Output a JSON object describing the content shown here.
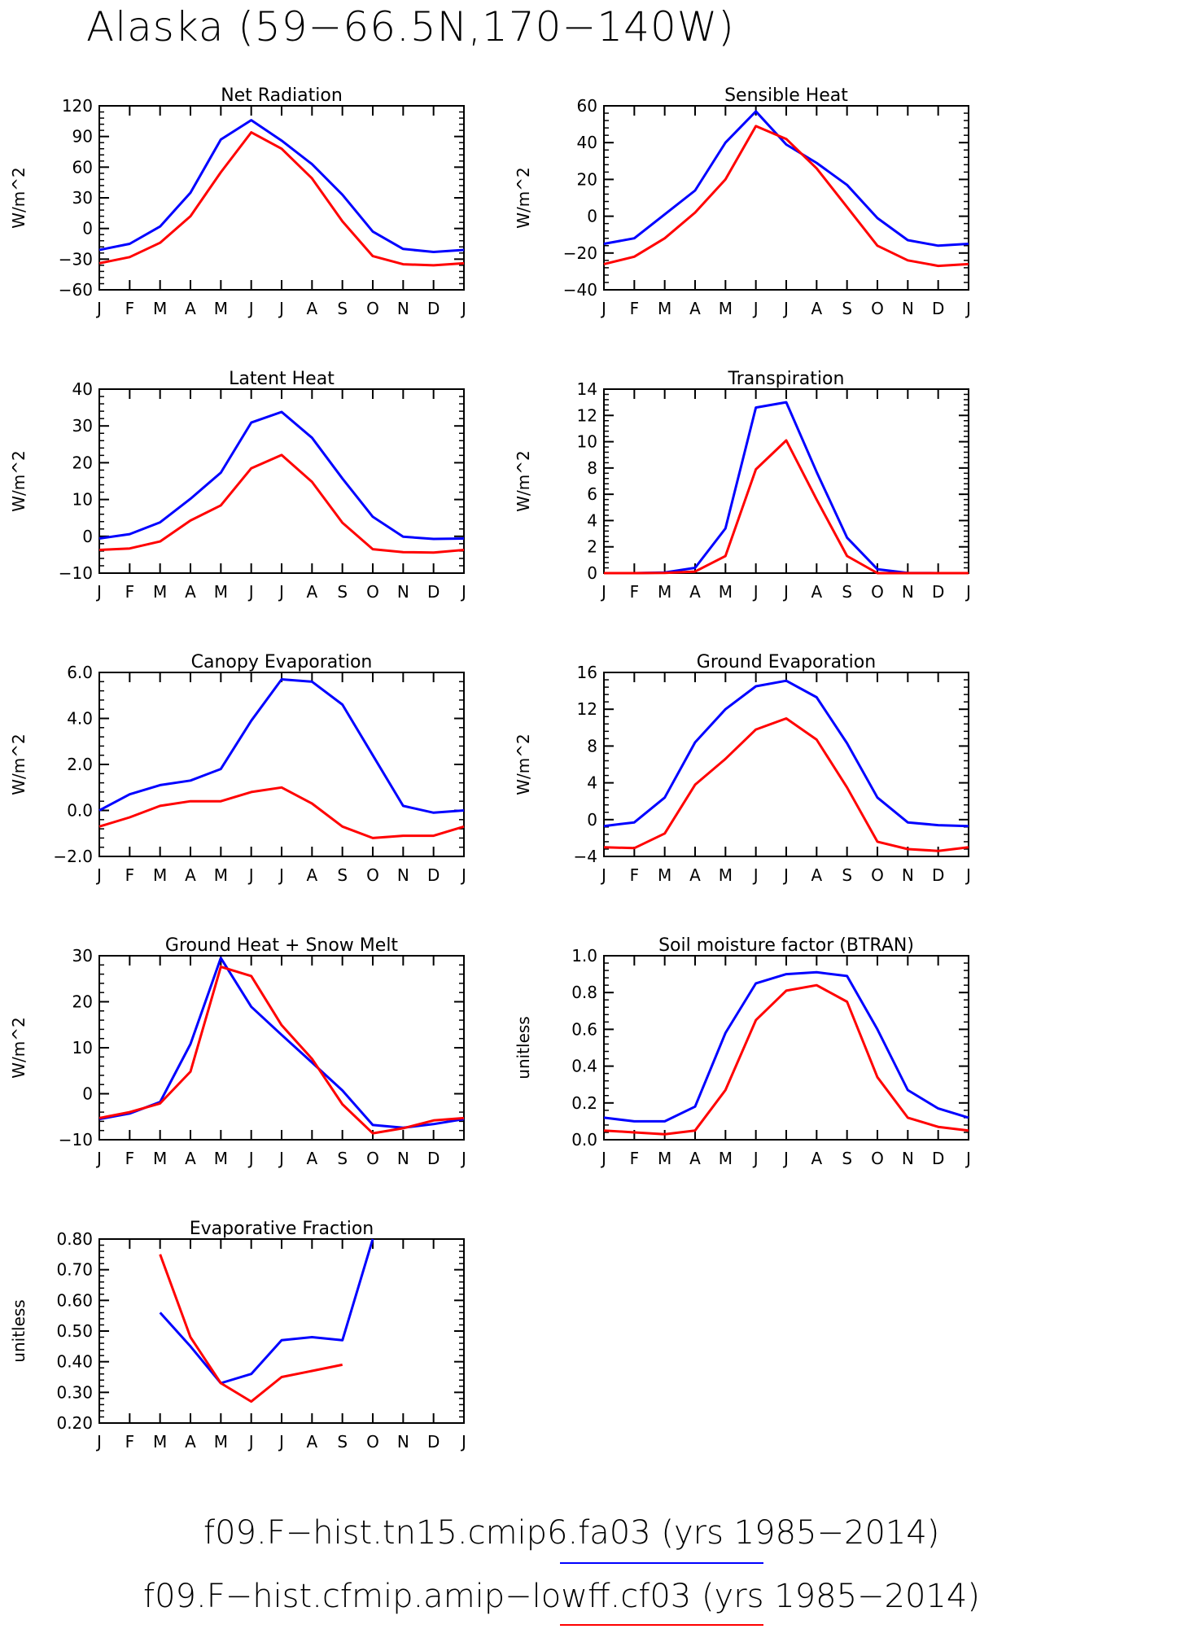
{
  "title": "Alaska (59−66.5N,170−140W)",
  "months": [
    "J",
    "F",
    "M",
    "A",
    "M",
    "J",
    "J",
    "A",
    "S",
    "O",
    "N",
    "D",
    "J"
  ],
  "colors": {
    "run1": "#0000ff",
    "run2": "#ff0000",
    "axis": "#000000"
  },
  "legend": [
    {
      "label": "f09.F−hist.tn15.cmip6.fa03 (yrs 1985−2014)",
      "color": "#0000ff"
    },
    {
      "label": "f09.F−hist.cfmip.amip−lowff.cf03 (yrs 1985−2014)",
      "color": "#ff0000"
    }
  ],
  "chart_data": [
    {
      "type": "line",
      "title": "Net Radiation",
      "ylabel": "W/m^2",
      "ylim": [
        -60,
        120
      ],
      "yticks": [
        "120",
        "90",
        "60",
        "30",
        "0",
        "−30",
        "−60"
      ],
      "series": [
        {
          "color": "#0000ff",
          "values": [
            -21,
            -15,
            2,
            35,
            87,
            106,
            86,
            63,
            33,
            -3,
            -20,
            -23,
            -21
          ]
        },
        {
          "color": "#ff0000",
          "values": [
            -34,
            -28,
            -14,
            12,
            55,
            94,
            78,
            49,
            7,
            -27,
            -35,
            -36,
            -34
          ]
        }
      ]
    },
    {
      "type": "line",
      "title": "Sensible Heat",
      "ylabel": "W/m^2",
      "ylim": [
        -40,
        60
      ],
      "yticks": [
        "60",
        "40",
        "20",
        "0",
        "−20",
        "−40"
      ],
      "series": [
        {
          "color": "#0000ff",
          "values": [
            -15,
            -12,
            1,
            14,
            40,
            57,
            39,
            29,
            17,
            -1,
            -13,
            -16,
            -15
          ]
        },
        {
          "color": "#ff0000",
          "values": [
            -26,
            -22,
            -12,
            2,
            20,
            49,
            42,
            26,
            5,
            -16,
            -24,
            -27,
            -26
          ]
        }
      ]
    },
    {
      "type": "line",
      "title": "Latent Heat",
      "ylabel": "W/m^2",
      "ylim": [
        -10,
        40
      ],
      "yticks": [
        "40",
        "30",
        "20",
        "10",
        "0",
        "−10"
      ],
      "series": [
        {
          "color": "#0000ff",
          "values": [
            -0.6,
            0.6,
            3.8,
            10.2,
            17.3,
            30.9,
            33.8,
            26.8,
            15.7,
            5.3,
            -0.1,
            -0.7,
            -0.6
          ]
        },
        {
          "color": "#ff0000",
          "values": [
            -3.7,
            -3.3,
            -1.4,
            4.3,
            8.4,
            18.5,
            22.1,
            14.8,
            3.7,
            -3.5,
            -4.3,
            -4.4,
            -3.7
          ]
        }
      ]
    },
    {
      "type": "line",
      "title": "Transpiration",
      "ylabel": "W/m^2",
      "ylim": [
        0,
        14
      ],
      "yticks": [
        "14",
        "12",
        "10",
        "8",
        "6",
        "4",
        "2",
        "0"
      ],
      "series": [
        {
          "color": "#0000ff",
          "values": [
            0,
            0,
            0.05,
            0.4,
            3.4,
            12.6,
            13,
            7.7,
            2.7,
            0.3,
            0.02,
            0,
            0
          ]
        },
        {
          "color": "#ff0000",
          "values": [
            0,
            0,
            0.02,
            0.12,
            1.3,
            7.9,
            10.1,
            5.6,
            1.3,
            0,
            0,
            0,
            0
          ]
        }
      ]
    },
    {
      "type": "line",
      "title": "Canopy Evaporation",
      "ylabel": "W/m^2",
      "ylim": [
        -2,
        6
      ],
      "yticks": [
        "6.0",
        "4.0",
        "2.0",
        "0.0",
        "−2.0"
      ],
      "series": [
        {
          "color": "#0000ff",
          "values": [
            0,
            0.7,
            1.1,
            1.3,
            1.8,
            3.9,
            5.7,
            5.6,
            4.6,
            2.4,
            0.2,
            -0.1,
            0
          ]
        },
        {
          "color": "#ff0000",
          "values": [
            -0.7,
            -0.3,
            0.2,
            0.4,
            0.4,
            0.8,
            1,
            0.3,
            -0.7,
            -1.2,
            -1.1,
            -1.1,
            -0.7
          ]
        }
      ]
    },
    {
      "type": "line",
      "title": "Ground Evaporation",
      "ylabel": "W/m^2",
      "ylim": [
        -4,
        16
      ],
      "yticks": [
        "16",
        "12",
        "8",
        "4",
        "0",
        "−4"
      ],
      "series": [
        {
          "color": "#0000ff",
          "values": [
            -0.7,
            -0.3,
            2.4,
            8.4,
            12,
            14.5,
            15.1,
            13.3,
            8.3,
            2.4,
            -0.3,
            -0.6,
            -0.7
          ]
        },
        {
          "color": "#ff0000",
          "values": [
            -3,
            -3.1,
            -1.5,
            3.8,
            6.6,
            9.8,
            11,
            8.7,
            3.5,
            -2.4,
            -3.2,
            -3.4,
            -3
          ]
        }
      ]
    },
    {
      "type": "line",
      "title": "Ground Heat + Snow Melt",
      "ylabel": "W/m^2",
      "ylim": [
        -10,
        30
      ],
      "yticks": [
        "30",
        "20",
        "10",
        "0",
        "−10"
      ],
      "series": [
        {
          "color": "#0000ff",
          "values": [
            -5.5,
            -4.3,
            -1.8,
            10.8,
            29.5,
            18.9,
            12.8,
            6.8,
            0.7,
            -6.8,
            -7.4,
            -6.6,
            -5.5
          ]
        },
        {
          "color": "#ff0000",
          "values": [
            -5.3,
            -4,
            -2.1,
            4.8,
            27.6,
            25.6,
            14.9,
            7.6,
            -2.3,
            -8.6,
            -7.5,
            -5.8,
            -5.3
          ]
        }
      ]
    },
    {
      "type": "line",
      "title": "Soil moisture factor (BTRAN)",
      "ylabel": "unitless",
      "ylim": [
        0,
        1
      ],
      "yticks": [
        "1.0",
        "0.8",
        "0.6",
        "0.4",
        "0.2",
        "0.0"
      ],
      "series": [
        {
          "color": "#0000ff",
          "values": [
            0.12,
            0.1,
            0.1,
            0.18,
            0.58,
            0.85,
            0.9,
            0.91,
            0.89,
            0.6,
            0.27,
            0.17,
            0.12
          ]
        },
        {
          "color": "#ff0000",
          "values": [
            0.05,
            0.04,
            0.03,
            0.05,
            0.27,
            0.65,
            0.81,
            0.84,
            0.75,
            0.34,
            0.12,
            0.07,
            0.05
          ]
        }
      ]
    },
    {
      "type": "line",
      "title": "Evaporative Fraction",
      "ylabel": "unitless",
      "ylim": [
        0.2,
        0.8
      ],
      "yticks": [
        "0.80",
        "0.70",
        "0.60",
        "0.50",
        "0.40",
        "0.30",
        "0.20"
      ],
      "series": [
        {
          "color": "#0000ff",
          "values": [
            null,
            null,
            0.56,
            0.45,
            0.33,
            0.36,
            0.47,
            0.48,
            0.47,
            0.8,
            null,
            null,
            null
          ]
        },
        {
          "color": "#ff0000",
          "values": [
            null,
            null,
            0.75,
            0.48,
            0.33,
            0.27,
            0.35,
            0.37,
            0.39,
            null,
            null,
            null,
            null
          ]
        }
      ]
    }
  ]
}
